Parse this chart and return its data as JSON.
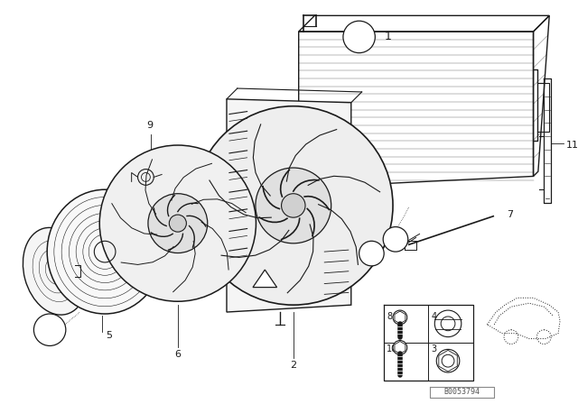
{
  "bg_color": "#ffffff",
  "line_color": "#1a1a1a",
  "fig_width": 6.4,
  "fig_height": 4.48,
  "dpi": 100,
  "watermark": "B0053794"
}
